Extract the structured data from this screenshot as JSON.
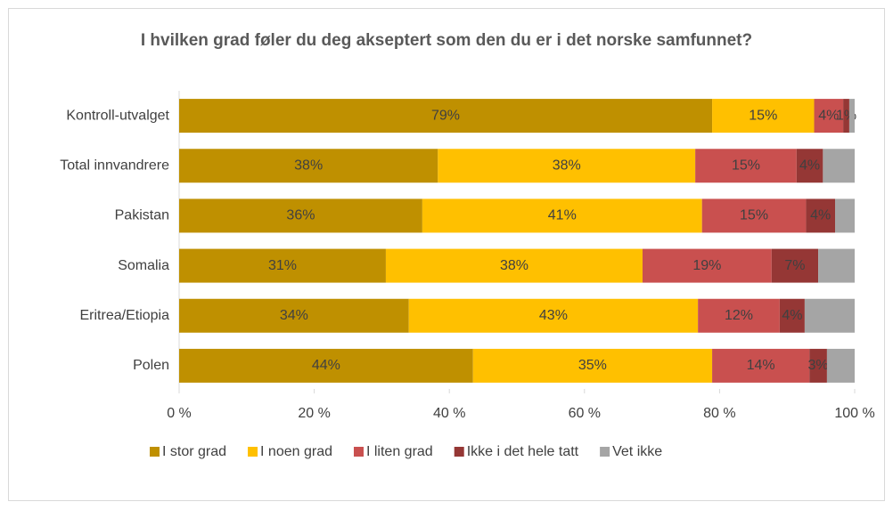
{
  "chart_data": {
    "type": "stacked-barh",
    "title": "I hvilken grad føler du deg akseptert som den du er i det norske samfunnet?",
    "categories": [
      "Kontroll-utvalget",
      "Total innvandrere",
      "Pakistan",
      "Somalia",
      "Eritrea/Etiopia",
      "Polen"
    ],
    "series": [
      {
        "name": "I stor grad",
        "color": "#bf9000",
        "values": [
          78.9,
          38.3,
          36.0,
          30.6,
          34.0,
          43.5
        ],
        "value_labels": [
          "79%",
          "38%",
          "36%",
          "31%",
          "34%",
          "44%"
        ]
      },
      {
        "name": "I noen grad",
        "color": "#ffc000",
        "values": [
          15.1,
          38.1,
          41.4,
          38.0,
          42.8,
          35.4
        ],
        "value_labels": [
          "15%",
          "38%",
          "41%",
          "38%",
          "43%",
          "35%"
        ]
      },
      {
        "name": "I liten grad",
        "color": "#c9504f",
        "values": [
          4.3,
          15.0,
          15.4,
          19.1,
          12.1,
          14.4
        ],
        "value_labels": [
          "4%",
          "15%",
          "15%",
          "19%",
          "12%",
          "14%"
        ]
      },
      {
        "name": "Ikke i det hele tatt",
        "color": "#953735",
        "values": [
          0.9,
          3.9,
          4.3,
          6.9,
          3.7,
          2.6
        ],
        "value_labels": [
          "1%",
          "4%",
          "4%",
          "7%",
          "4%",
          "3%"
        ]
      },
      {
        "name": "Vet ikke",
        "color": "#a5a5a5",
        "values": [
          0.8,
          4.7,
          2.9,
          5.4,
          7.4,
          4.1
        ]
      }
    ],
    "xlim": [
      0,
      100
    ],
    "xticks": [
      {
        "value": 0,
        "label": "0 %"
      },
      {
        "value": 20,
        "label": "20 %"
      },
      {
        "value": 40,
        "label": "40 %"
      },
      {
        "value": 60,
        "label": "60 %"
      },
      {
        "value": 80,
        "label": "80 %"
      },
      {
        "value": 100,
        "label": "100 %"
      }
    ],
    "legend": "bottom"
  }
}
